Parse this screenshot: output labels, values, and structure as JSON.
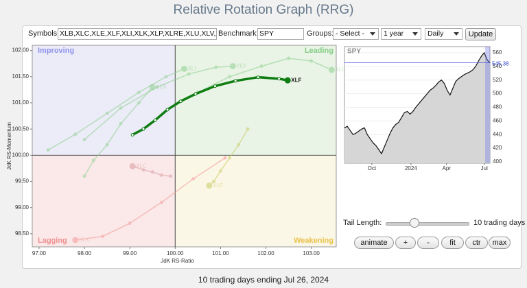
{
  "header": {
    "title": "Relative Rotation Graph (RRG)"
  },
  "controls": {
    "symbols_label": "Symbols:",
    "symbols": "XLB,XLC,XLE,XLF,XLI,XLK,XLP,XLRE,XLU,XLV,XL",
    "benchmark_label": "Benchmark:",
    "benchmark": "SPY",
    "groups_label": "Groups:",
    "groups": "- Select -",
    "period": "1 year",
    "interval": "Daily",
    "update": "Update"
  },
  "rrg": {
    "type": "scatter",
    "xlabel": "JdK RS-Ratio",
    "ylabel": "JdK RS-Momentum",
    "xlim": [
      96.85,
      103.55
    ],
    "ylim": [
      98.25,
      102.1
    ],
    "xticks": [
      {
        "value": 97,
        "label": "97.00"
      },
      {
        "value": 98,
        "label": "98.00"
      },
      {
        "value": 99,
        "label": "99.00"
      },
      {
        "value": 100,
        "label": "100.00"
      },
      {
        "value": 101,
        "label": "101.00"
      },
      {
        "value": 102,
        "label": "102.00"
      },
      {
        "value": 103,
        "label": "103.00"
      }
    ],
    "yticks": [
      {
        "value": 98.5,
        "label": "98.50"
      },
      {
        "value": 99,
        "label": "99.00"
      },
      {
        "value": 99.5,
        "label": "99.50"
      },
      {
        "value": 100,
        "label": "100.00"
      },
      {
        "value": 100.5,
        "label": "100.50"
      },
      {
        "value": 101,
        "label": "101.00"
      },
      {
        "value": 101.5,
        "label": "101.50"
      },
      {
        "value": 102,
        "label": "102.00"
      }
    ],
    "quadrants": {
      "improving": "Improving",
      "leading": "Leading",
      "lagging": "Lagging",
      "weakening": "Weakening"
    },
    "series": [
      {
        "name": "XLB",
        "color": "#8fcf8f",
        "highlight": false,
        "x": [
          98.0,
          98.2,
          98.5,
          98.8,
          99.2,
          99.5
        ],
        "y": [
          99.6,
          99.9,
          100.2,
          100.6,
          101.0,
          101.3
        ]
      },
      {
        "name": "XLI",
        "color": "#8fcf8f",
        "highlight": false,
        "x": [
          97.2,
          97.8,
          98.5,
          99.2,
          99.8,
          100.2
        ],
        "y": [
          100.1,
          100.4,
          100.8,
          101.2,
          101.5,
          101.65
        ]
      },
      {
        "name": "XLV",
        "color": "#8fcf8f",
        "highlight": false,
        "x": [
          98.0,
          98.8,
          99.6,
          100.3,
          100.9,
          101.27
        ],
        "y": [
          100.3,
          100.9,
          101.3,
          101.55,
          101.68,
          101.7
        ]
      },
      {
        "name": "XLU",
        "color": "#8fcf8f",
        "highlight": false,
        "x": [
          100.5,
          101.2,
          101.9,
          102.5,
          103.0,
          103.45
        ],
        "y": [
          101.2,
          101.5,
          101.7,
          101.85,
          101.8,
          101.63
        ]
      },
      {
        "name": "XLE",
        "color": "#c8cc66",
        "highlight": false,
        "x": [
          101.6,
          101.4,
          101.2,
          101.0,
          100.85,
          100.75
        ],
        "y": [
          100.5,
          100.2,
          99.95,
          99.7,
          99.5,
          99.42
        ]
      },
      {
        "name": "XLC",
        "color": "#d99a9a",
        "highlight": false,
        "x": [
          99.9,
          99.7,
          99.5,
          99.3,
          99.1,
          99.06
        ],
        "y": [
          99.6,
          99.62,
          99.68,
          99.72,
          99.78,
          99.79
        ]
      },
      {
        "name": "XLK",
        "color": "#f29a9a",
        "highlight": false,
        "x": [
          101.1,
          100.4,
          99.7,
          99.0,
          98.4,
          97.8
        ],
        "y": [
          99.95,
          99.55,
          99.1,
          98.7,
          98.45,
          98.38
        ]
      },
      {
        "name": "XLF",
        "color": "#0f7d12",
        "highlight": true,
        "x": [
          99.06,
          99.3,
          99.56,
          99.83,
          100.12,
          100.45,
          100.88,
          101.33,
          101.83,
          102.29,
          102.48
        ],
        "y": [
          100.39,
          100.5,
          100.67,
          100.87,
          101.03,
          101.17,
          101.32,
          101.42,
          101.49,
          101.46,
          101.43
        ]
      }
    ]
  },
  "benchmark_chart": {
    "type": "line",
    "title": "SPY",
    "color": "#111111",
    "values": [
      450,
      452,
      446,
      440,
      442,
      445,
      448,
      450,
      440,
      434,
      428,
      424,
      418,
      412,
      422,
      432,
      442,
      450,
      455,
      458,
      465,
      472,
      474,
      470,
      474,
      480,
      485,
      490,
      495,
      500,
      505,
      508,
      512,
      517,
      520,
      515,
      505,
      498,
      508,
      518,
      522,
      525,
      528,
      530,
      532,
      535,
      540,
      548,
      555,
      560,
      550,
      545
    ],
    "last_value": 545.38,
    "xlim": [
      0,
      51
    ],
    "ylim": [
      398,
      569
    ],
    "xticks": [
      {
        "value": 9.6,
        "label": "Oct"
      },
      {
        "value": 23.3,
        "label": "2024"
      },
      {
        "value": 35.8,
        "label": "Apr"
      },
      {
        "value": 49,
        "label": "Jul"
      }
    ],
    "yticks": [
      400,
      420,
      440,
      460,
      480,
      500,
      520,
      540,
      560
    ]
  },
  "tail": {
    "label": "Tail Length:",
    "value_label": "10 trading days"
  },
  "buttons": [
    "animate",
    "+",
    "-",
    "fit",
    "ctr",
    "max"
  ],
  "footer": "10 trading days ending Jul 26, 2024"
}
